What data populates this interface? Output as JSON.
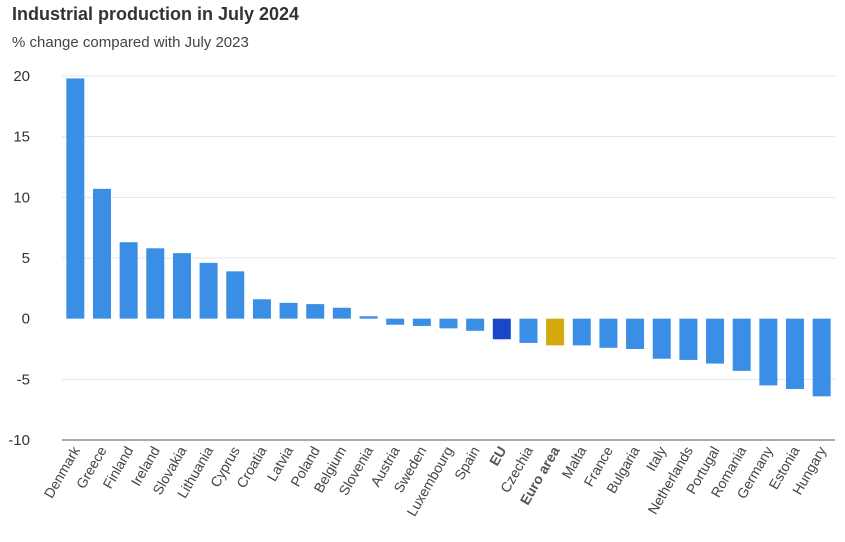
{
  "chart_data": {
    "type": "bar",
    "title": "Industrial production in July 2024",
    "subtitle": "% change compared with July 2023",
    "xlabel": "",
    "ylabel": "",
    "ylim": [
      -10,
      20
    ],
    "yticks": [
      20,
      15,
      10,
      5,
      0,
      -5,
      -10
    ],
    "grid": true,
    "categories": [
      "Denmark",
      "Greece",
      "Finland",
      "Ireland",
      "Slovakia",
      "Lithuania",
      "Cyprus",
      "Croatia",
      "Latvia",
      "Poland",
      "Belgium",
      "Slovenia",
      "Austria",
      "Sweden",
      "Luxembourg",
      "Spain",
      "EU",
      "Czechia",
      "Euro area",
      "Malta",
      "France",
      "Bulgaria",
      "Italy",
      "Netherlands",
      "Portugal",
      "Romania",
      "Germany",
      "Estonia",
      "Hungary"
    ],
    "values": [
      19.8,
      10.7,
      6.3,
      5.8,
      5.4,
      4.6,
      3.9,
      1.6,
      1.3,
      1.2,
      0.9,
      0.2,
      -0.5,
      -0.6,
      -0.8,
      -1.0,
      -1.7,
      -2.0,
      -2.2,
      -2.2,
      -2.4,
      -2.5,
      -3.3,
      -3.4,
      -3.7,
      -4.3,
      -5.5,
      -5.8,
      -6.4
    ],
    "bold_categories": [
      "EU",
      "Euro area"
    ],
    "colors": {
      "default": "#3a8ee6",
      "EU": "#1a47c9",
      "Euro area": "#d4a90c",
      "grid": "#e6e6e6",
      "axis": "#555555"
    }
  }
}
